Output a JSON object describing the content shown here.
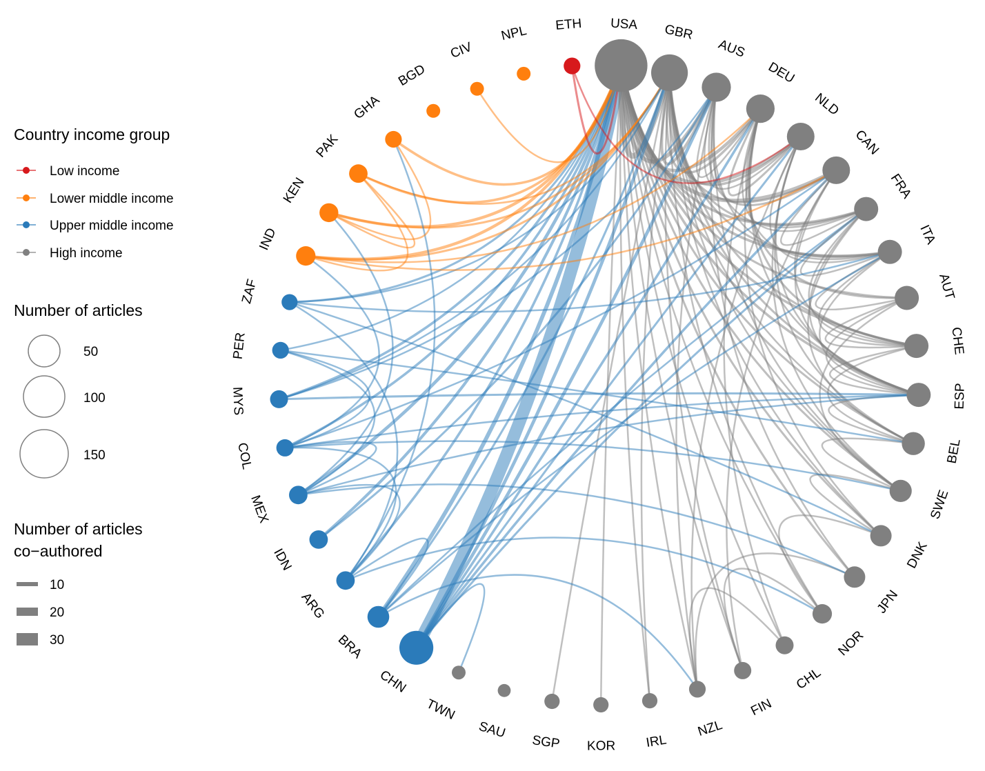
{
  "legend": {
    "income": {
      "title": "Country income group",
      "items": [
        {
          "label": "Low income",
          "color": "#d7191c"
        },
        {
          "label": "Lower middle income",
          "color": "#ff7f0e"
        },
        {
          "label": "Upper middle income",
          "color": "#2b7bba"
        },
        {
          "label": "High income",
          "color": "#808080"
        }
      ]
    },
    "articles": {
      "title": "Number of articles",
      "items": [
        {
          "label": "50",
          "value": 50
        },
        {
          "label": "100",
          "value": 100
        },
        {
          "label": "150",
          "value": 150
        }
      ]
    },
    "coauthored": {
      "title_line1": "Number of articles",
      "title_line2": "co−authored",
      "items": [
        {
          "label": "10",
          "value": 10
        },
        {
          "label": "20",
          "value": 20
        },
        {
          "label": "30",
          "value": 30
        }
      ]
    }
  },
  "chart_data": {
    "type": "chord-network",
    "nodes": [
      {
        "id": "USA",
        "group": "High income",
        "articles": 160
      },
      {
        "id": "GBR",
        "group": "High income",
        "articles": 70
      },
      {
        "id": "AUS",
        "group": "High income",
        "articles": 40
      },
      {
        "id": "DEU",
        "group": "High income",
        "articles": 38
      },
      {
        "id": "NLD",
        "group": "High income",
        "articles": 35
      },
      {
        "id": "CAN",
        "group": "High income",
        "articles": 35
      },
      {
        "id": "FRA",
        "group": "High income",
        "articles": 25
      },
      {
        "id": "ITA",
        "group": "High income",
        "articles": 25
      },
      {
        "id": "AUT",
        "group": "High income",
        "articles": 25
      },
      {
        "id": "CHE",
        "group": "High income",
        "articles": 25
      },
      {
        "id": "ESP",
        "group": "High income",
        "articles": 25
      },
      {
        "id": "BEL",
        "group": "High income",
        "articles": 22
      },
      {
        "id": "SWE",
        "group": "High income",
        "articles": 20
      },
      {
        "id": "DNK",
        "group": "High income",
        "articles": 18
      },
      {
        "id": "JPN",
        "group": "High income",
        "articles": 18
      },
      {
        "id": "NOR",
        "group": "High income",
        "articles": 14
      },
      {
        "id": "CHL",
        "group": "High income",
        "articles": 11
      },
      {
        "id": "FIN",
        "group": "High income",
        "articles": 10
      },
      {
        "id": "NZL",
        "group": "High income",
        "articles": 9
      },
      {
        "id": "IRL",
        "group": "High income",
        "articles": 7
      },
      {
        "id": "KOR",
        "group": "High income",
        "articles": 7
      },
      {
        "id": "SGP",
        "group": "High income",
        "articles": 7
      },
      {
        "id": "SAU",
        "group": "High income",
        "articles": 4
      },
      {
        "id": "TWN",
        "group": "High income",
        "articles": 5
      },
      {
        "id": "CHN",
        "group": "Upper middle income",
        "articles": 58
      },
      {
        "id": "BRA",
        "group": "Upper middle income",
        "articles": 19
      },
      {
        "id": "ARG",
        "group": "Upper middle income",
        "articles": 12
      },
      {
        "id": "IDN",
        "group": "Upper middle income",
        "articles": 12
      },
      {
        "id": "MEX",
        "group": "Upper middle income",
        "articles": 12
      },
      {
        "id": "COL",
        "group": "Upper middle income",
        "articles": 10
      },
      {
        "id": "MYS",
        "group": "Upper middle income",
        "articles": 11
      },
      {
        "id": "PER",
        "group": "Upper middle income",
        "articles": 9
      },
      {
        "id": "ZAF",
        "group": "Upper middle income",
        "articles": 8
      },
      {
        "id": "IND",
        "group": "Lower middle income",
        "articles": 14
      },
      {
        "id": "KEN",
        "group": "Lower middle income",
        "articles": 13
      },
      {
        "id": "PAK",
        "group": "Lower middle income",
        "articles": 12
      },
      {
        "id": "GHA",
        "group": "Lower middle income",
        "articles": 9
      },
      {
        "id": "BGD",
        "group": "Lower middle income",
        "articles": 5
      },
      {
        "id": "CIV",
        "group": "Lower middle income",
        "articles": 5
      },
      {
        "id": "NPL",
        "group": "Lower middle income",
        "articles": 5
      },
      {
        "id": "ETH",
        "group": "Low income",
        "articles": 9
      }
    ],
    "links": [
      {
        "source": "USA",
        "target": "CHN",
        "value": 30
      },
      {
        "source": "USA",
        "target": "BRA",
        "value": 8
      },
      {
        "source": "USA",
        "target": "MEX",
        "value": 6
      },
      {
        "source": "USA",
        "target": "IDN",
        "value": 5
      },
      {
        "source": "USA",
        "target": "ARG",
        "value": 4
      },
      {
        "source": "USA",
        "target": "COL",
        "value": 4
      },
      {
        "source": "USA",
        "target": "MYS",
        "value": 4
      },
      {
        "source": "USA",
        "target": "ZAF",
        "value": 3
      },
      {
        "source": "USA",
        "target": "PER",
        "value": 2
      },
      {
        "source": "USA",
        "target": "IND",
        "value": 5
      },
      {
        "source": "USA",
        "target": "KEN",
        "value": 5
      },
      {
        "source": "USA",
        "target": "PAK",
        "value": 4
      },
      {
        "source": "USA",
        "target": "GHA",
        "value": 4
      },
      {
        "source": "USA",
        "target": "CIV",
        "value": 2
      },
      {
        "source": "USA",
        "target": "ETH",
        "value": 3
      },
      {
        "source": "USA",
        "target": "GBR",
        "value": 12
      },
      {
        "source": "USA",
        "target": "AUS",
        "value": 8
      },
      {
        "source": "USA",
        "target": "DEU",
        "value": 6
      },
      {
        "source": "USA",
        "target": "NLD",
        "value": 6
      },
      {
        "source": "USA",
        "target": "CAN",
        "value": 8
      },
      {
        "source": "USA",
        "target": "FRA",
        "value": 4
      },
      {
        "source": "USA",
        "target": "ITA",
        "value": 4
      },
      {
        "source": "USA",
        "target": "AUT",
        "value": 3
      },
      {
        "source": "USA",
        "target": "CHE",
        "value": 4
      },
      {
        "source": "USA",
        "target": "ESP",
        "value": 4
      },
      {
        "source": "USA",
        "target": "BEL",
        "value": 3
      },
      {
        "source": "USA",
        "target": "SWE",
        "value": 3
      },
      {
        "source": "USA",
        "target": "DNK",
        "value": 3
      },
      {
        "source": "USA",
        "target": "JPN",
        "value": 3
      },
      {
        "source": "USA",
        "target": "NOR",
        "value": 2
      },
      {
        "source": "USA",
        "target": "CHL",
        "value": 2
      },
      {
        "source": "USA",
        "target": "FIN",
        "value": 2
      },
      {
        "source": "USA",
        "target": "NZL",
        "value": 2
      },
      {
        "source": "USA",
        "target": "IRL",
        "value": 2
      },
      {
        "source": "USA",
        "target": "KOR",
        "value": 2
      },
      {
        "source": "GBR",
        "target": "CHN",
        "value": 6
      },
      {
        "source": "GBR",
        "target": "BRA",
        "value": 3
      },
      {
        "source": "GBR",
        "target": "IND",
        "value": 3
      },
      {
        "source": "GBR",
        "target": "KEN",
        "value": 3
      },
      {
        "source": "GBR",
        "target": "PAK",
        "value": 2
      },
      {
        "source": "GBR",
        "target": "ZAF",
        "value": 2
      },
      {
        "source": "GBR",
        "target": "MYS",
        "value": 2
      },
      {
        "source": "GBR",
        "target": "AUS",
        "value": 5
      },
      {
        "source": "GBR",
        "target": "DEU",
        "value": 4
      },
      {
        "source": "GBR",
        "target": "NLD",
        "value": 4
      },
      {
        "source": "GBR",
        "target": "CAN",
        "value": 3
      },
      {
        "source": "GBR",
        "target": "FRA",
        "value": 3
      },
      {
        "source": "GBR",
        "target": "ITA",
        "value": 3
      },
      {
        "source": "GBR",
        "target": "CHE",
        "value": 3
      },
      {
        "source": "GBR",
        "target": "ESP",
        "value": 3
      },
      {
        "source": "GBR",
        "target": "BEL",
        "value": 2
      },
      {
        "source": "GBR",
        "target": "SWE",
        "value": 2
      },
      {
        "source": "GBR",
        "target": "DNK",
        "value": 2
      },
      {
        "source": "GBR",
        "target": "NOR",
        "value": 2
      },
      {
        "source": "GBR",
        "target": "FIN",
        "value": 2
      },
      {
        "source": "GBR",
        "target": "IRL",
        "value": 2
      },
      {
        "source": "GBR",
        "target": "SGP",
        "value": 2
      },
      {
        "source": "AUS",
        "target": "CHN",
        "value": 6
      },
      {
        "source": "AUS",
        "target": "IDN",
        "value": 3
      },
      {
        "source": "AUS",
        "target": "MYS",
        "value": 2
      },
      {
        "source": "AUS",
        "target": "CAN",
        "value": 3
      },
      {
        "source": "AUS",
        "target": "NLD",
        "value": 2
      },
      {
        "source": "AUS",
        "target": "DEU",
        "value": 2
      },
      {
        "source": "AUS",
        "target": "FRA",
        "value": 2
      },
      {
        "source": "AUS",
        "target": "ITA",
        "value": 2
      },
      {
        "source": "AUS",
        "target": "NZL",
        "value": 2
      },
      {
        "source": "AUS",
        "target": "JPN",
        "value": 2
      },
      {
        "source": "AUS",
        "target": "SWE",
        "value": 2
      },
      {
        "source": "DEU",
        "target": "CHN",
        "value": 4
      },
      {
        "source": "DEU",
        "target": "IND",
        "value": 2
      },
      {
        "source": "DEU",
        "target": "NLD",
        "value": 3
      },
      {
        "source": "DEU",
        "target": "AUT",
        "value": 3
      },
      {
        "source": "DEU",
        "target": "CHE",
        "value": 3
      },
      {
        "source": "DEU",
        "target": "FRA",
        "value": 2
      },
      {
        "source": "DEU",
        "target": "ITA",
        "value": 2
      },
      {
        "source": "DEU",
        "target": "ESP",
        "value": 2
      },
      {
        "source": "DEU",
        "target": "DNK",
        "value": 2
      },
      {
        "source": "DEU",
        "target": "CHL",
        "value": 2
      },
      {
        "source": "NLD",
        "target": "ETH",
        "value": 2
      },
      {
        "source": "NLD",
        "target": "CHN",
        "value": 3
      },
      {
        "source": "NLD",
        "target": "BEL",
        "value": 2
      },
      {
        "source": "NLD",
        "target": "ESP",
        "value": 2
      },
      {
        "source": "NLD",
        "target": "ITA",
        "value": 2
      },
      {
        "source": "NLD",
        "target": "SWE",
        "value": 2
      },
      {
        "source": "NLD",
        "target": "NZL",
        "value": 2
      },
      {
        "source": "CAN",
        "target": "CHN",
        "value": 4
      },
      {
        "source": "CAN",
        "target": "COL",
        "value": 2
      },
      {
        "source": "CAN",
        "target": "IND",
        "value": 2
      },
      {
        "source": "CAN",
        "target": "FRA",
        "value": 2
      },
      {
        "source": "CAN",
        "target": "ESP",
        "value": 2
      },
      {
        "source": "CAN",
        "target": "CHE",
        "value": 2
      },
      {
        "source": "CAN",
        "target": "FIN",
        "value": 2
      },
      {
        "source": "FRA",
        "target": "CHN",
        "value": 3
      },
      {
        "source": "FRA",
        "target": "BRA",
        "value": 2
      },
      {
        "source": "FRA",
        "target": "ITA",
        "value": 2
      },
      {
        "source": "FRA",
        "target": "ESP",
        "value": 2
      },
      {
        "source": "FRA",
        "target": "BEL",
        "value": 2
      },
      {
        "source": "FRA",
        "target": "CHE",
        "value": 2
      },
      {
        "source": "ITA",
        "target": "ESP",
        "value": 2
      },
      {
        "source": "ITA",
        "target": "AUT",
        "value": 2
      },
      {
        "source": "ITA",
        "target": "CHE",
        "value": 2
      },
      {
        "source": "ITA",
        "target": "BRA",
        "value": 2
      },
      {
        "source": "ITA",
        "target": "ZAF",
        "value": 2
      },
      {
        "source": "AUT",
        "target": "CHE",
        "value": 2
      },
      {
        "source": "AUT",
        "target": "ESP",
        "value": 2
      },
      {
        "source": "AUT",
        "target": "SWE",
        "value": 2
      },
      {
        "source": "CHE",
        "target": "ESP",
        "value": 2
      },
      {
        "source": "CHE",
        "target": "BEL",
        "value": 2
      },
      {
        "source": "ESP",
        "target": "BEL",
        "value": 2
      },
      {
        "source": "ESP",
        "target": "MYS",
        "value": 3
      },
      {
        "source": "ESP",
        "target": "MEX",
        "value": 2
      },
      {
        "source": "ESP",
        "target": "COL",
        "value": 2
      },
      {
        "source": "BEL",
        "target": "SWE",
        "value": 2
      },
      {
        "source": "BEL",
        "target": "PER",
        "value": 2
      },
      {
        "source": "SWE",
        "target": "DNK",
        "value": 2
      },
      {
        "source": "SWE",
        "target": "COL",
        "value": 2
      },
      {
        "source": "DNK",
        "target": "NOR",
        "value": 2
      },
      {
        "source": "DNK",
        "target": "ZAF",
        "value": 2
      },
      {
        "source": "JPN",
        "target": "NZL",
        "value": 2
      },
      {
        "source": "JPN",
        "target": "MEX",
        "value": 2
      },
      {
        "source": "NOR",
        "target": "FIN",
        "value": 2
      },
      {
        "source": "NOR",
        "target": "ARG",
        "value": 2
      },
      {
        "source": "NZL",
        "target": "CHL",
        "value": 2
      },
      {
        "source": "NZL",
        "target": "BRA",
        "value": 2
      },
      {
        "source": "CHN",
        "target": "TWN",
        "value": 2
      },
      {
        "source": "BRA",
        "target": "ARG",
        "value": 2
      },
      {
        "source": "ARG",
        "target": "MEX",
        "value": 2
      },
      {
        "source": "ARG",
        "target": "COL",
        "value": 2
      },
      {
        "source": "ARG",
        "target": "ZAF",
        "value": 2
      },
      {
        "source": "MEX",
        "target": "COL",
        "value": 2
      },
      {
        "source": "MEX",
        "target": "PER",
        "value": 2
      },
      {
        "source": "COL",
        "target": "PER",
        "value": 2
      },
      {
        "source": "COL",
        "target": "IND",
        "value": 2
      },
      {
        "source": "MEX",
        "target": "KEN",
        "value": 2
      },
      {
        "source": "ARG",
        "target": "GHA",
        "value": 2
      },
      {
        "source": "IND",
        "target": "PAK",
        "value": 2
      },
      {
        "source": "KEN",
        "target": "PAK",
        "value": 2
      },
      {
        "source": "GHA",
        "target": "KEN",
        "value": 2
      }
    ]
  }
}
